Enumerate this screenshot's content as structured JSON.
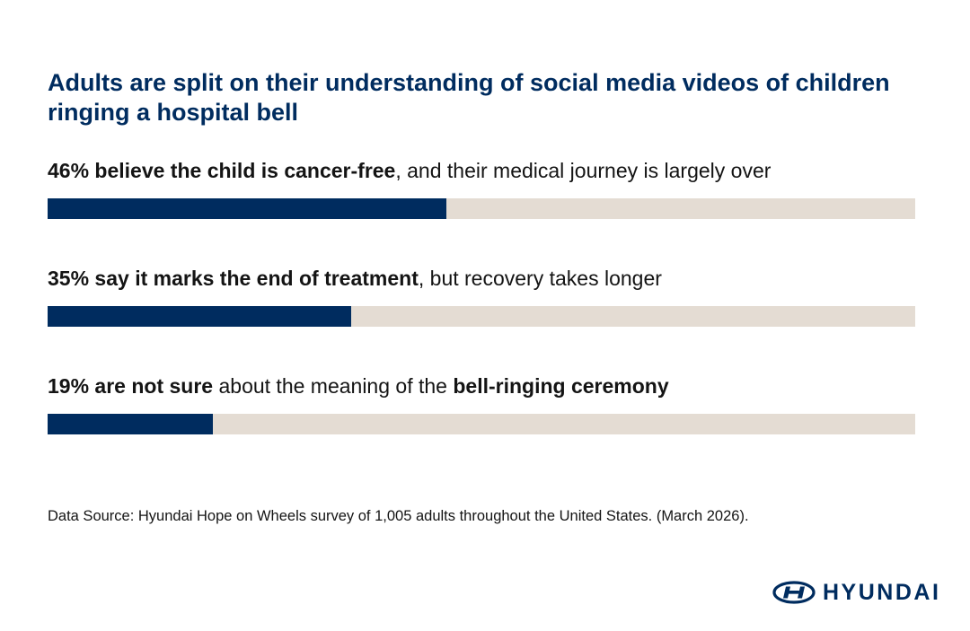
{
  "title": "Adults are split on their understanding of social media videos of children ringing a hospital bell",
  "chart_data": {
    "type": "bar",
    "orientation": "horizontal",
    "xlim": [
      0,
      100
    ],
    "bars": [
      {
        "value": 46,
        "label_segments": [
          {
            "text": "46% believe the child is cancer-free",
            "bold": true
          },
          {
            "text": ", and their medical journey is largely over",
            "bold": false
          }
        ]
      },
      {
        "value": 35,
        "label_segments": [
          {
            "text": "35% say it marks the end of treatment",
            "bold": true
          },
          {
            "text": ", but recovery takes longer",
            "bold": false
          }
        ]
      },
      {
        "value": 19,
        "label_segments": [
          {
            "text": "19% are not sure",
            "bold": true
          },
          {
            "text": " about the meaning of the ",
            "bold": false
          },
          {
            "text": "bell-ringing ceremony",
            "bold": true
          }
        ]
      }
    ],
    "colors": {
      "fill": "#002c5f",
      "track": "#e4dcd3"
    }
  },
  "source": "Data Source: Hyundai Hope on Wheels survey of 1,005 adults throughout the United States. (March 2026).",
  "logo": {
    "text": "HYUNDAI",
    "icon": "hyundai-emblem-icon"
  }
}
